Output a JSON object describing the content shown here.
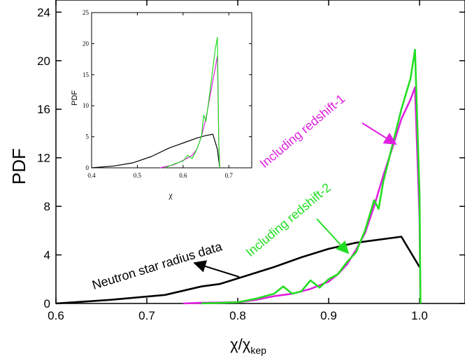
{
  "chart_data": [
    {
      "type": "line",
      "panel": "main",
      "xlabel": "χ/χ",
      "xlabel_sub": "kep",
      "ylabel": "PDF",
      "xlim": [
        0.6,
        1.05
      ],
      "ylim": [
        0,
        25
      ],
      "xticks": [
        0.6,
        0.7,
        0.8,
        0.9,
        1.0
      ],
      "xtick_labels": [
        "0.6",
        "0.7",
        "0.8",
        "0.9",
        "1.0"
      ],
      "yticks": [
        0,
        4,
        8,
        12,
        16,
        20,
        24
      ],
      "ytick_labels": [
        "0",
        "4",
        "8",
        "12",
        "16",
        "20",
        "24"
      ],
      "series": [
        {
          "name": "Neutron star radius data",
          "color": "#000000",
          "x": [
            0.6,
            0.62,
            0.66,
            0.69,
            0.72,
            0.76,
            0.78,
            0.81,
            0.84,
            0.87,
            0.9,
            0.93,
            0.95,
            0.98,
            1.0
          ],
          "y": [
            0.0,
            0.1,
            0.3,
            0.5,
            0.7,
            1.4,
            1.6,
            2.3,
            3.0,
            3.8,
            4.5,
            5.0,
            5.2,
            5.5,
            3.0
          ]
        },
        {
          "name": "Including redshift-1",
          "color": "#e020e0",
          "x": [
            0.74,
            0.76,
            0.8,
            0.82,
            0.84,
            0.86,
            0.88,
            0.9,
            0.91,
            0.92,
            0.93,
            0.94,
            0.95,
            0.96,
            0.97,
            0.98,
            0.99,
            0.995,
            1.0,
            1.001
          ],
          "y": [
            0.0,
            0.05,
            0.1,
            0.3,
            0.6,
            0.8,
            1.2,
            1.8,
            2.4,
            3.2,
            4.4,
            5.8,
            8.0,
            10.5,
            12.8,
            15.2,
            16.8,
            17.8,
            7.0,
            0.0
          ]
        },
        {
          "name": "Including redshift-2",
          "color": "#22dd22",
          "x": [
            0.76,
            0.8,
            0.82,
            0.84,
            0.85,
            0.86,
            0.87,
            0.88,
            0.89,
            0.9,
            0.91,
            0.92,
            0.93,
            0.94,
            0.95,
            0.955,
            0.96,
            0.97,
            0.98,
            0.99,
            0.995,
            1.0,
            1.001
          ],
          "y": [
            0.0,
            0.1,
            0.4,
            0.8,
            1.4,
            0.8,
            1.0,
            1.9,
            1.3,
            2.0,
            2.4,
            3.4,
            4.2,
            6.0,
            8.5,
            7.8,
            10.0,
            13.0,
            16.0,
            18.5,
            20.9,
            9.0,
            0.0
          ]
        }
      ],
      "annotations": [
        {
          "text": "Neutron star radius data",
          "color": "#000000"
        },
        {
          "text": "Including redshift-2",
          "color": "#22dd22"
        },
        {
          "text": "Including redshift-1",
          "color": "#e020e0"
        }
      ]
    },
    {
      "type": "line",
      "panel": "inset",
      "xlabel": "χ",
      "ylabel": "PDF",
      "xlim": [
        0.4,
        0.75
      ],
      "ylim": [
        0,
        25
      ],
      "xticks": [
        0.4,
        0.5,
        0.6,
        0.7
      ],
      "xtick_labels": [
        "0.4",
        "0.5",
        "0.6",
        "0.7"
      ],
      "yticks": [
        0,
        5,
        10,
        15,
        20,
        25
      ],
      "ytick_labels": [
        "0",
        "5",
        "10",
        "15",
        "20",
        "25"
      ],
      "series": [
        {
          "name": "Neutron star radius data",
          "color": "#000000",
          "x": [
            0.4,
            0.45,
            0.49,
            0.53,
            0.57,
            0.6,
            0.63,
            0.65,
            0.665,
            0.675,
            0.68
          ],
          "y": [
            0.0,
            0.3,
            0.8,
            1.8,
            3.2,
            4.0,
            4.8,
            5.2,
            5.4,
            3.0,
            0.0
          ]
        },
        {
          "name": "Including redshift-1",
          "color": "#e020e0",
          "x": [
            0.55,
            0.58,
            0.6,
            0.62,
            0.63,
            0.64,
            0.65,
            0.66,
            0.67,
            0.675,
            0.678,
            0.68
          ],
          "y": [
            0.0,
            0.5,
            1.2,
            2.0,
            3.0,
            5.0,
            8.0,
            12.0,
            16.0,
            18.0,
            4.0,
            0.0
          ]
        },
        {
          "name": "Including redshift-2",
          "color": "#22dd22",
          "x": [
            0.56,
            0.58,
            0.6,
            0.61,
            0.62,
            0.63,
            0.64,
            0.645,
            0.65,
            0.66,
            0.665,
            0.67,
            0.675,
            0.678,
            0.68
          ],
          "y": [
            0.0,
            0.6,
            1.1,
            2.0,
            1.5,
            3.0,
            5.0,
            8.5,
            7.5,
            13.0,
            16.0,
            19.0,
            21.0,
            4.0,
            0.0
          ]
        }
      ]
    }
  ]
}
